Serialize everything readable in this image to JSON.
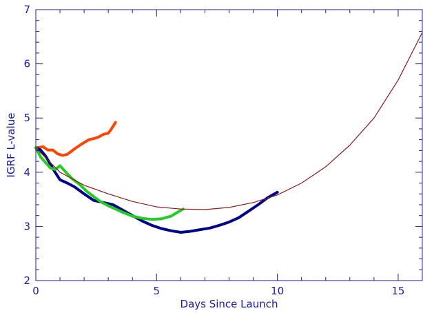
{
  "chart_data": {
    "type": "line",
    "xlabel": "Days Since Launch",
    "ylabel": "IGRF L-value",
    "xlim": [
      0,
      16
    ],
    "ylim": [
      2,
      7
    ],
    "x_major_ticks": [
      0,
      5,
      10,
      15
    ],
    "x_minor_step": 1,
    "y_major_ticks": [
      2,
      3,
      4,
      5,
      6,
      7
    ],
    "y_minor_step": 0.2,
    "grid": false,
    "legend": "none",
    "axis_color": "#1a1aa0",
    "series": [
      {
        "color": "#ff4500",
        "line_width": 4,
        "points": [
          [
            0.0,
            4.45
          ],
          [
            0.3,
            4.47
          ],
          [
            0.5,
            4.41
          ],
          [
            0.7,
            4.41
          ],
          [
            0.9,
            4.34
          ],
          [
            1.1,
            4.31
          ],
          [
            1.3,
            4.33
          ],
          [
            1.6,
            4.43
          ],
          [
            1.9,
            4.52
          ],
          [
            2.2,
            4.6
          ],
          [
            2.4,
            4.62
          ],
          [
            2.6,
            4.65
          ],
          [
            2.8,
            4.7
          ],
          [
            3.0,
            4.72
          ],
          [
            3.1,
            4.78
          ],
          [
            3.2,
            4.85
          ],
          [
            3.3,
            4.92
          ]
        ]
      },
      {
        "color": "#00008b",
        "line_width": 4,
        "points": [
          [
            0.0,
            4.45
          ],
          [
            0.2,
            4.41
          ],
          [
            0.4,
            4.3
          ],
          [
            0.6,
            4.15
          ],
          [
            0.8,
            4.0
          ],
          [
            1.0,
            3.86
          ],
          [
            1.3,
            3.8
          ],
          [
            1.6,
            3.73
          ],
          [
            2.0,
            3.6
          ],
          [
            2.4,
            3.48
          ],
          [
            2.8,
            3.44
          ],
          [
            3.2,
            3.4
          ],
          [
            3.6,
            3.3
          ],
          [
            4.0,
            3.2
          ],
          [
            4.4,
            3.1
          ],
          [
            4.8,
            3.02
          ],
          [
            5.2,
            2.96
          ],
          [
            5.6,
            2.92
          ],
          [
            6.0,
            2.89
          ],
          [
            6.4,
            2.91
          ],
          [
            6.8,
            2.94
          ],
          [
            7.2,
            2.97
          ],
          [
            7.6,
            3.02
          ],
          [
            8.0,
            3.08
          ],
          [
            8.4,
            3.16
          ],
          [
            8.8,
            3.28
          ],
          [
            9.2,
            3.4
          ],
          [
            9.6,
            3.53
          ],
          [
            10.0,
            3.63
          ]
        ]
      },
      {
        "color": "#22cc22",
        "line_width": 4,
        "points": [
          [
            0.0,
            4.45
          ],
          [
            0.2,
            4.28
          ],
          [
            0.4,
            4.18
          ],
          [
            0.6,
            4.08
          ],
          [
            0.8,
            4.05
          ],
          [
            1.0,
            4.12
          ],
          [
            1.2,
            4.02
          ],
          [
            1.5,
            3.88
          ],
          [
            1.8,
            3.78
          ],
          [
            2.1,
            3.65
          ],
          [
            2.4,
            3.55
          ],
          [
            2.7,
            3.45
          ],
          [
            3.0,
            3.38
          ],
          [
            3.3,
            3.32
          ],
          [
            3.6,
            3.26
          ],
          [
            4.0,
            3.19
          ],
          [
            4.4,
            3.15
          ],
          [
            4.8,
            3.13
          ],
          [
            5.2,
            3.14
          ],
          [
            5.6,
            3.19
          ],
          [
            5.9,
            3.27
          ],
          [
            6.1,
            3.32
          ]
        ]
      },
      {
        "color": "#8b1a1a",
        "line_width": 1.2,
        "points": [
          [
            0.0,
            4.45
          ],
          [
            1.0,
            4.0
          ],
          [
            2.0,
            3.76
          ],
          [
            3.0,
            3.6
          ],
          [
            4.0,
            3.46
          ],
          [
            5.0,
            3.36
          ],
          [
            6.0,
            3.32
          ],
          [
            7.0,
            3.31
          ],
          [
            8.0,
            3.35
          ],
          [
            9.0,
            3.44
          ],
          [
            10.0,
            3.58
          ],
          [
            11.0,
            3.8
          ],
          [
            12.0,
            4.1
          ],
          [
            13.0,
            4.5
          ],
          [
            14.0,
            5.0
          ],
          [
            15.0,
            5.7
          ],
          [
            16.0,
            6.58
          ]
        ]
      }
    ]
  }
}
